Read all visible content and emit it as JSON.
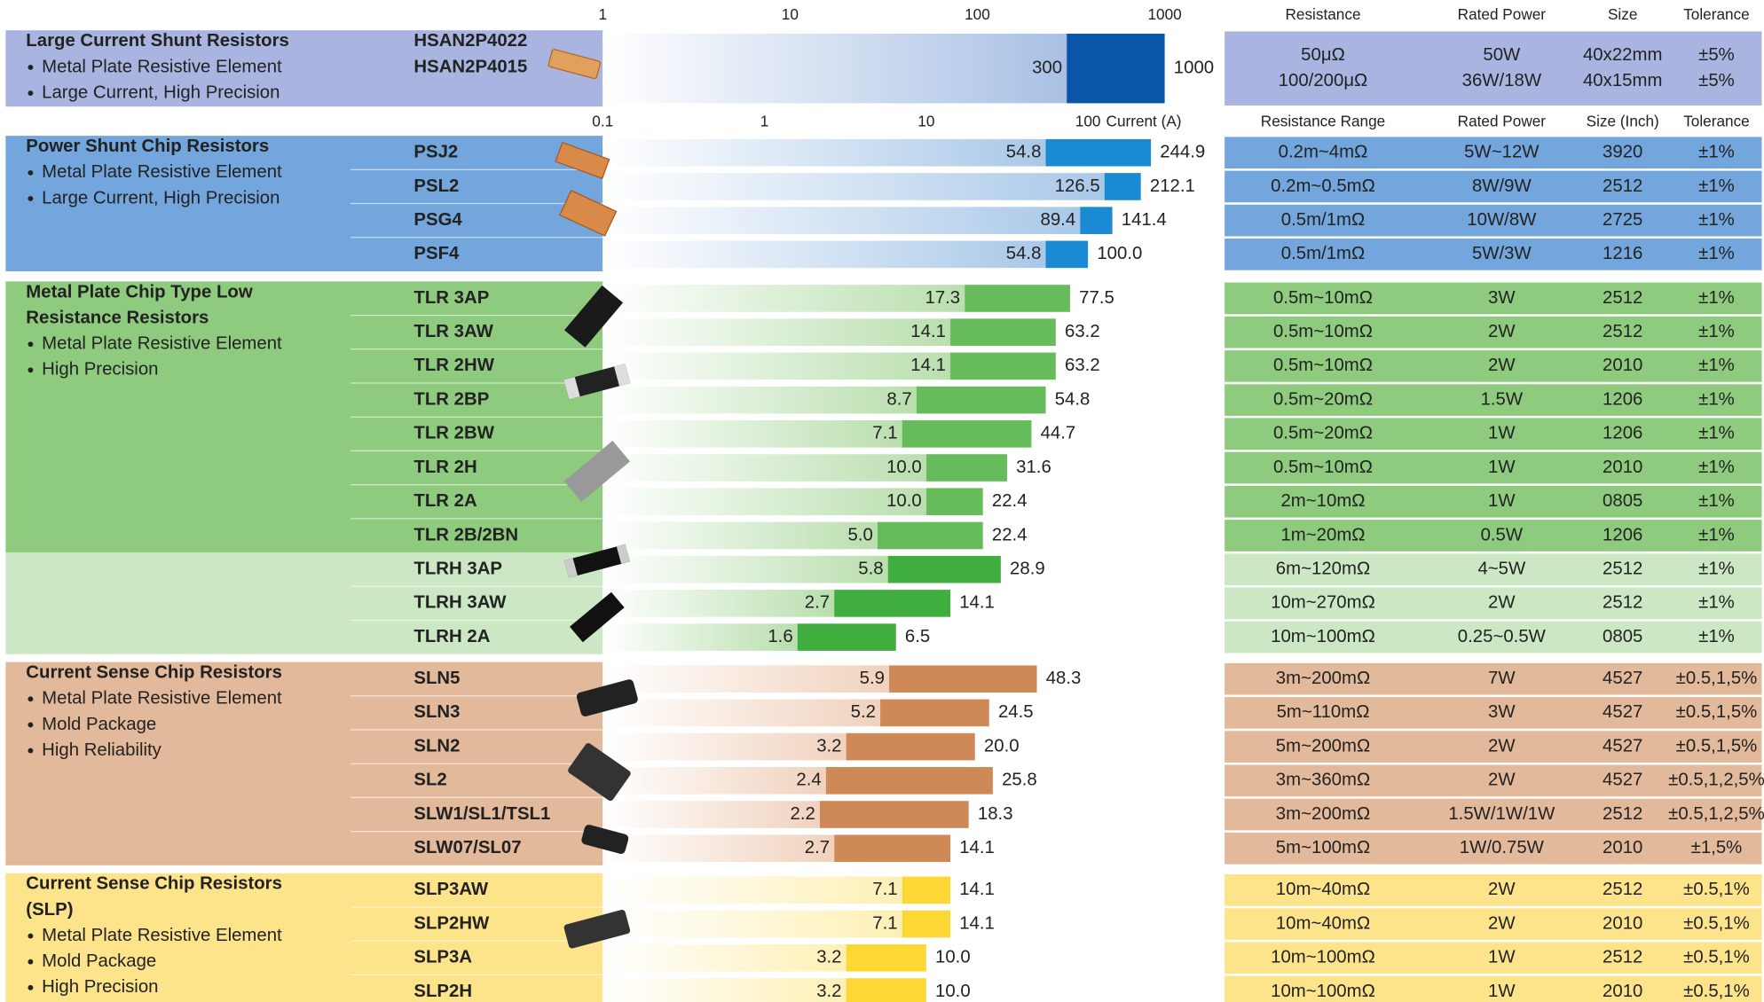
{
  "chart_data": {
    "type": "range-bar",
    "xscale": "log",
    "headers": [
      {
        "xlim": [
          1,
          1000
        ],
        "xticks": [
          1,
          10,
          100,
          1000
        ],
        "columns": [
          "Resistance",
          "Rated Power",
          "Size",
          "Tolerance"
        ]
      },
      {
        "xlim": [
          0.1,
          350
        ],
        "xticks": [
          0.1,
          1,
          10,
          100
        ],
        "label": "Current (A)",
        "columns": [
          "Resistance Range",
          "Rated Power",
          "Size (Inch)",
          "Tolerance"
        ]
      }
    ],
    "sections": [
      {
        "header": 0,
        "title": [
          "Large Current Shunt Resistors"
        ],
        "bullets": [
          "Metal Plate Resistive Element",
          "Large Current, High Precision"
        ],
        "panel": "#a9b5e0",
        "color": "#0b55a8",
        "fade": "#a9c0e4",
        "rows": [
          {
            "names": [
              "HSAN2P4022",
              "HSAN2P4015"
            ],
            "range": [
              300,
              1000
            ],
            "specs": [
              [
                "50μΩ",
                "100/200μΩ"
              ],
              [
                "50W",
                "36W/18W"
              ],
              [
                "40x22mm",
                "40x15mm"
              ],
              [
                "±5%",
                "±5%"
              ]
            ]
          }
        ]
      },
      {
        "header": 1,
        "title": [
          "Power Shunt Chip Resistors"
        ],
        "bullets": [
          "Metal Plate Resistive Element",
          "Large Current, High Precision"
        ],
        "panel": "#72a6dd",
        "color": "#1a8ad4",
        "fade": "#a9c8e8",
        "rows": [
          {
            "names": [
              "PSJ2"
            ],
            "range": [
              54.8,
              244.9
            ],
            "range_labels": [
              "54.8",
              "244.9"
            ],
            "specs": [
              [
                "0.2m~4mΩ"
              ],
              [
                "5W~12W"
              ],
              [
                "3920"
              ],
              [
                "±1%"
              ]
            ]
          },
          {
            "names": [
              "PSL2"
            ],
            "range": [
              126.5,
              212.1
            ],
            "range_labels": [
              "126.5",
              "212.1"
            ],
            "specs": [
              [
                "0.2m~0.5mΩ"
              ],
              [
                "8W/9W"
              ],
              [
                "2512"
              ],
              [
                "±1%"
              ]
            ]
          },
          {
            "names": [
              "PSG4"
            ],
            "range": [
              89.4,
              141.4
            ],
            "range_labels": [
              "89.4",
              "141.4"
            ],
            "specs": [
              [
                "0.5m/1mΩ"
              ],
              [
                "10W/8W"
              ],
              [
                "2725"
              ],
              [
                "±1%"
              ]
            ]
          },
          {
            "names": [
              "PSF4"
            ],
            "range": [
              54.8,
              100
            ],
            "range_labels": [
              "54.8",
              "100.0"
            ],
            "specs": [
              [
                "0.5m/1mΩ"
              ],
              [
                "5W/3W"
              ],
              [
                "1216"
              ],
              [
                "±1%"
              ]
            ]
          }
        ]
      },
      {
        "header": 1,
        "title": [
          "Metal Plate Chip Type Low",
          "Resistance Resistors"
        ],
        "bullets": [
          "Metal Plate Resistive Element",
          "High Precision"
        ],
        "panel": "#8fcb7e",
        "color": "#66bb5a",
        "fade": "#b9dfae",
        "rows": [
          {
            "names": [
              "TLR 3AP"
            ],
            "range": [
              17.3,
              77.5
            ],
            "range_labels": [
              "17.3",
              "77.5"
            ],
            "specs": [
              [
                "0.5m~10mΩ"
              ],
              [
                "3W"
              ],
              [
                "2512"
              ],
              [
                "±1%"
              ]
            ]
          },
          {
            "names": [
              "TLR 3AW"
            ],
            "range": [
              14.1,
              63.2
            ],
            "range_labels": [
              "14.1",
              "63.2"
            ],
            "specs": [
              [
                "0.5m~10mΩ"
              ],
              [
                "2W"
              ],
              [
                "2512"
              ],
              [
                "±1%"
              ]
            ]
          },
          {
            "names": [
              "TLR 2HW"
            ],
            "range": [
              14.1,
              63.2
            ],
            "range_labels": [
              "14.1",
              "63.2"
            ],
            "specs": [
              [
                "0.5m~10mΩ"
              ],
              [
                "2W"
              ],
              [
                "2010"
              ],
              [
                "±1%"
              ]
            ]
          },
          {
            "names": [
              "TLR 2BP"
            ],
            "range": [
              8.7,
              54.8
            ],
            "range_labels": [
              "8.7",
              "54.8"
            ],
            "specs": [
              [
                "0.5m~20mΩ"
              ],
              [
                "1.5W"
              ],
              [
                "1206"
              ],
              [
                "±1%"
              ]
            ]
          },
          {
            "names": [
              "TLR 2BW"
            ],
            "range": [
              7.1,
              44.7
            ],
            "range_labels": [
              "7.1",
              "44.7"
            ],
            "specs": [
              [
                "0.5m~20mΩ"
              ],
              [
                "1W"
              ],
              [
                "1206"
              ],
              [
                "±1%"
              ]
            ]
          },
          {
            "names": [
              "TLR 2H"
            ],
            "range": [
              10,
              31.6
            ],
            "range_labels": [
              "10.0",
              "31.6"
            ],
            "specs": [
              [
                "0.5m~10mΩ"
              ],
              [
                "1W"
              ],
              [
                "2010"
              ],
              [
                "±1%"
              ]
            ]
          },
          {
            "names": [
              "TLR 2A"
            ],
            "range": [
              10,
              22.4
            ],
            "range_labels": [
              "10.0",
              "22.4"
            ],
            "specs": [
              [
                "2m~10mΩ"
              ],
              [
                "1W"
              ],
              [
                "0805"
              ],
              [
                "±1%"
              ]
            ]
          },
          {
            "names": [
              "TLR 2B/2BN"
            ],
            "range": [
              5,
              22.4
            ],
            "range_labels": [
              "5.0",
              "22.4"
            ],
            "specs": [
              [
                "1m~20mΩ"
              ],
              [
                "0.5W"
              ],
              [
                "1206"
              ],
              [
                "±1%"
              ]
            ]
          }
        ]
      },
      {
        "header": 1,
        "title": [],
        "bullets": [],
        "panel": "#cbe7c3",
        "color": "#3fae3f",
        "fade": "#b9dfae",
        "rows": [
          {
            "names": [
              "TLRH 3AP"
            ],
            "range": [
              5.8,
              28.9
            ],
            "range_labels": [
              "5.8",
              "28.9"
            ],
            "specs": [
              [
                "6m~120mΩ"
              ],
              [
                "4~5W"
              ],
              [
                "2512"
              ],
              [
                "±1%"
              ]
            ]
          },
          {
            "names": [
              "TLRH 3AW"
            ],
            "range": [
              2.7,
              14.1
            ],
            "range_labels": [
              "2.7",
              "14.1"
            ],
            "specs": [
              [
                "10m~270mΩ"
              ],
              [
                "2W"
              ],
              [
                "2512"
              ],
              [
                "±1%"
              ]
            ]
          },
          {
            "names": [
              "TLRH 2A"
            ],
            "range": [
              1.6,
              6.5
            ],
            "range_labels": [
              "1.6",
              "6.5"
            ],
            "specs": [
              [
                "10m~100mΩ"
              ],
              [
                "0.25~0.5W"
              ],
              [
                "0805"
              ],
              [
                "±1%"
              ]
            ]
          }
        ]
      },
      {
        "header": 1,
        "title": [
          "Current Sense Chip Resistors"
        ],
        "bullets": [
          "Metal Plate Resistive Element",
          "Mold Package",
          "High Reliability"
        ],
        "panel": "#e3b99b",
        "color": "#cf8957",
        "fade": "#f0d2bd",
        "rows": [
          {
            "names": [
              "SLN5"
            ],
            "range": [
              5.9,
              48.3
            ],
            "range_labels": [
              "5.9",
              "48.3"
            ],
            "specs": [
              [
                "3m~200mΩ"
              ],
              [
                "7W"
              ],
              [
                "4527"
              ],
              [
                "±0.5,1,5%"
              ]
            ]
          },
          {
            "names": [
              "SLN3"
            ],
            "range": [
              5.2,
              24.5
            ],
            "range_labels": [
              "5.2",
              "24.5"
            ],
            "specs": [
              [
                "5m~110mΩ"
              ],
              [
                "3W"
              ],
              [
                "4527"
              ],
              [
                "±0.5,1,5%"
              ]
            ]
          },
          {
            "names": [
              "SLN2"
            ],
            "range": [
              3.2,
              20
            ],
            "range_labels": [
              "3.2",
              "20.0"
            ],
            "specs": [
              [
                "5m~200mΩ"
              ],
              [
                "2W"
              ],
              [
                "4527"
              ],
              [
                "±0.5,1,5%"
              ]
            ]
          },
          {
            "names": [
              "SL2"
            ],
            "range": [
              2.4,
              25.8
            ],
            "range_labels": [
              "2.4",
              "25.8"
            ],
            "specs": [
              [
                "3m~360mΩ"
              ],
              [
                "2W"
              ],
              [
                "4527"
              ],
              [
                "±0.5,1,2,5%"
              ]
            ]
          },
          {
            "names": [
              "SLW1/SL1/TSL1"
            ],
            "range": [
              2.2,
              18.3
            ],
            "range_labels": [
              "2.2",
              "18.3"
            ],
            "specs": [
              [
                "3m~200mΩ"
              ],
              [
                "1.5W/1W/1W"
              ],
              [
                "2512"
              ],
              [
                "±0.5,1,2,5%"
              ]
            ]
          },
          {
            "names": [
              "SLW07/SL07"
            ],
            "range": [
              2.7,
              14.1
            ],
            "range_labels": [
              "2.7",
              "14.1"
            ],
            "specs": [
              [
                "5m~100mΩ"
              ],
              [
                "1W/0.75W"
              ],
              [
                "2010"
              ],
              [
                "±1,5%"
              ]
            ]
          }
        ]
      },
      {
        "header": 1,
        "title": [
          "Current Sense Chip Resistors",
          "(SLP)"
        ],
        "bullets": [
          "Metal Plate Resistive Element",
          "Mold Package",
          "High Precision"
        ],
        "panel": "#fde48a",
        "color": "#fdd835",
        "fade": "#fdf0b5",
        "rows": [
          {
            "names": [
              "SLP3AW"
            ],
            "range": [
              7.1,
              14.1
            ],
            "range_labels": [
              "7.1",
              "14.1"
            ],
            "specs": [
              [
                "10m~40mΩ"
              ],
              [
                "2W"
              ],
              [
                "2512"
              ],
              [
                "±0.5,1%"
              ]
            ]
          },
          {
            "names": [
              "SLP2HW"
            ],
            "range": [
              7.1,
              14.1
            ],
            "range_labels": [
              "7.1",
              "14.1"
            ],
            "specs": [
              [
                "10m~40mΩ"
              ],
              [
                "2W"
              ],
              [
                "2010"
              ],
              [
                "±0.5,1%"
              ]
            ]
          },
          {
            "names": [
              "SLP3A"
            ],
            "range": [
              3.2,
              10
            ],
            "range_labels": [
              "3.2",
              "10.0"
            ],
            "specs": [
              [
                "10m~100mΩ"
              ],
              [
                "1W"
              ],
              [
                "2512"
              ],
              [
                "±0.5,1%"
              ]
            ]
          },
          {
            "names": [
              "SLP2H"
            ],
            "range": [
              3.2,
              10
            ],
            "range_labels": [
              "3.2",
              "10.0"
            ],
            "specs": [
              [
                "10m~100mΩ"
              ],
              [
                "1W"
              ],
              [
                "2010"
              ],
              [
                "±0.5,1%"
              ]
            ]
          }
        ]
      }
    ]
  }
}
